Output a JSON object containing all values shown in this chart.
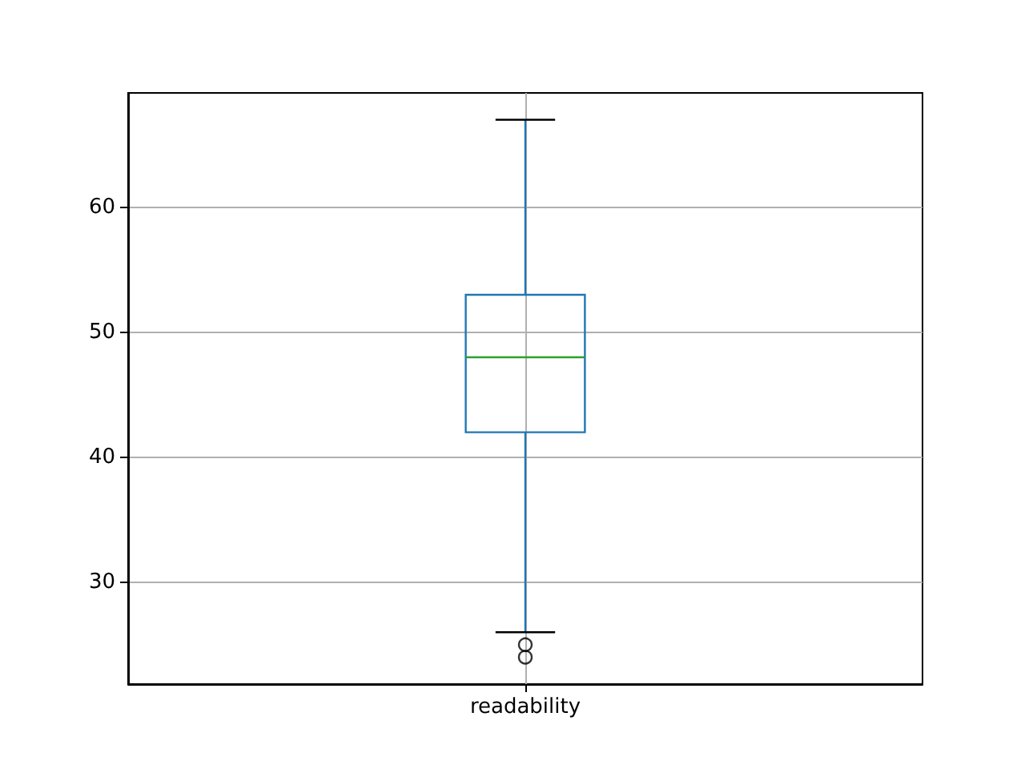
{
  "chart_data": {
    "type": "box",
    "categories": [
      "readability"
    ],
    "series": [
      {
        "color": "#1f77b4",
        "boxes": [
          {
            "low": 26,
            "q1": 42,
            "median": 48,
            "q3": 53,
            "high": 67,
            "outliers": [
              24,
              25
            ]
          }
        ]
      }
    ],
    "ylim": [
      21.85,
      69.15
    ],
    "yticks": [
      30,
      40,
      50,
      60
    ],
    "grid": true
  }
}
